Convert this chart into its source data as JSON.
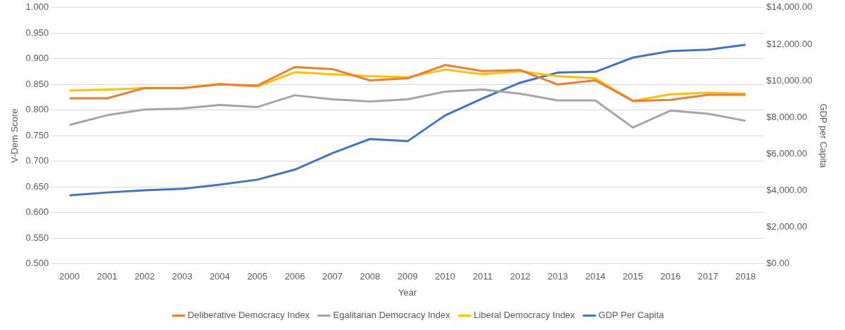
{
  "chart_data": {
    "type": "line",
    "xlabel": "Year",
    "ylabel": "V-Dem Score",
    "y2label": "GDP per Capita",
    "categories": [
      "2000",
      "2001",
      "2002",
      "2003",
      "2004",
      "2005",
      "2006",
      "2007",
      "2008",
      "2009",
      "2010",
      "2011",
      "2012",
      "2013",
      "2014",
      "2015",
      "2016",
      "2017",
      "2018"
    ],
    "series": [
      {
        "name": "Deliberative Democracy Index",
        "color": "#ed7d31",
        "values": [
          0.823,
          0.823,
          0.843,
          0.843,
          0.85,
          0.848,
          0.884,
          0.88,
          0.858,
          0.862,
          0.888,
          0.876,
          0.878,
          0.85,
          0.858,
          0.818,
          0.82,
          0.83,
          0.83
        ]
      },
      {
        "name": "Egalitarian Democracy Index",
        "color": "#a5a5a5",
        "values": [
          0.771,
          0.79,
          0.801,
          0.803,
          0.81,
          0.806,
          0.829,
          0.821,
          0.817,
          0.821,
          0.836,
          0.84,
          0.832,
          0.819,
          0.819,
          0.766,
          0.799,
          0.793,
          0.779
        ]
      },
      {
        "name": "Liberal Democracy Index",
        "color": "#ffc000",
        "values": [
          0.838,
          0.84,
          0.843,
          0.843,
          0.851,
          0.846,
          0.874,
          0.87,
          0.866,
          0.864,
          0.879,
          0.87,
          0.876,
          0.866,
          0.862,
          0.818,
          0.831,
          0.834,
          0.832
        ]
      },
      {
        "name": "GDP Per Capita",
        "color": "#4472c4",
        "axis": "y2",
        "values": [
          3740,
          3900,
          4020,
          4100,
          4330,
          4600,
          5150,
          6050,
          6820,
          6700,
          8110,
          9040,
          9900,
          10450,
          10490,
          11270,
          11620,
          11700,
          11970
        ]
      }
    ],
    "ylim": [
      0.5,
      1.0
    ],
    "yticks": [
      {
        "value": 0.5,
        "label": "0.500"
      },
      {
        "value": 0.55,
        "label": "0.550"
      },
      {
        "value": 0.6,
        "label": "0.600"
      },
      {
        "value": 0.65,
        "label": "0.650"
      },
      {
        "value": 0.7,
        "label": "0.700"
      },
      {
        "value": 0.75,
        "label": "0.750"
      },
      {
        "value": 0.8,
        "label": "0.800"
      },
      {
        "value": 0.85,
        "label": "0.850"
      },
      {
        "value": 0.9,
        "label": "0.900"
      },
      {
        "value": 0.95,
        "label": "0.950"
      },
      {
        "value": 1.0,
        "label": "1.000"
      }
    ],
    "y2lim": [
      0,
      14000
    ],
    "y2ticks": [
      {
        "value": 0,
        "label": "$0.00"
      },
      {
        "value": 2000,
        "label": "$2,000.00"
      },
      {
        "value": 4000,
        "label": "$4,000.00"
      },
      {
        "value": 6000,
        "label": "$6,000.00"
      },
      {
        "value": 8000,
        "label": "$8,000.00"
      },
      {
        "value": 10000,
        "label": "$10,000.00"
      },
      {
        "value": 12000,
        "label": "$12,000.00"
      },
      {
        "value": 14000,
        "label": "$14,000.00"
      }
    ],
    "grid": "y",
    "legend": "bottom",
    "marker": "none",
    "line_style": "solid"
  }
}
